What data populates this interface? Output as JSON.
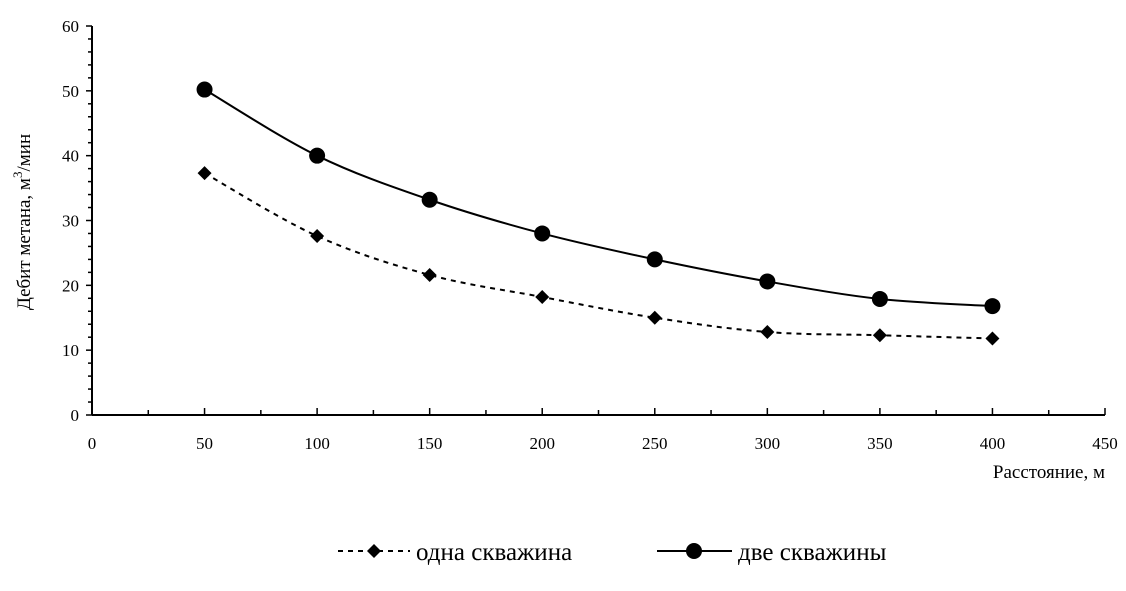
{
  "chart_data": {
    "type": "line",
    "title": "",
    "xlabel": "Расстояние, м",
    "ylabel": {
      "main": "Дебит метана, м",
      "superscript": "3",
      "suffix": "/мин"
    },
    "xlim": [
      0,
      450
    ],
    "ylim": [
      0,
      60
    ],
    "xticks": [
      0,
      50,
      100,
      150,
      200,
      250,
      300,
      350,
      400,
      450
    ],
    "yticks": [
      0,
      10,
      20,
      30,
      40,
      50,
      60
    ],
    "grid": false,
    "legend_position": "bottom",
    "x": [
      50,
      100,
      150,
      200,
      250,
      300,
      350,
      400
    ],
    "series": [
      {
        "name": "одна скважина",
        "values": [
          37.3,
          27.6,
          21.6,
          18.2,
          15.0,
          12.8,
          12.3,
          11.8
        ],
        "line_style": "dashed",
        "marker": "diamond",
        "color": "#000000"
      },
      {
        "name": "две скважины",
        "values": [
          50.2,
          40.0,
          33.2,
          28.0,
          24.0,
          20.6,
          17.9,
          16.8
        ],
        "line_style": "solid",
        "marker": "circle",
        "color": "#000000"
      }
    ]
  }
}
